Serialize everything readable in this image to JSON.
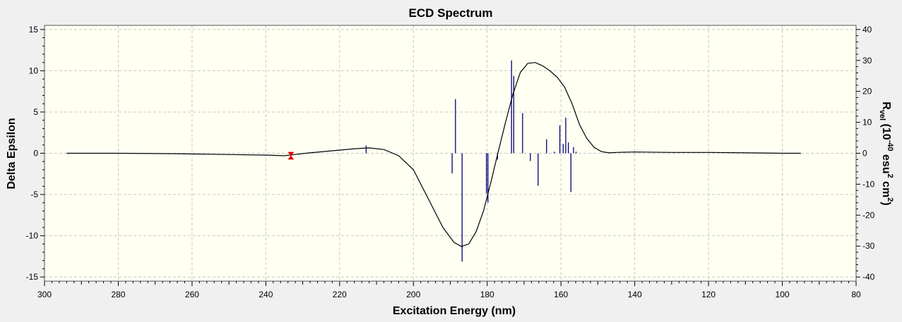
{
  "colors": {
    "plot_background": "#fffff2",
    "window_background": "#f0f0f0",
    "curve": "#000000",
    "sticks": "#00007a",
    "marker": "#e00000",
    "grid": "#c8c8c8"
  },
  "chart_data": {
    "type": "line",
    "title": "ECD Spectrum",
    "xlabel": "Excitation Energy (nm)",
    "ylabel_left": "Delta Epsilon",
    "ylabel_right": {
      "prefix": "R",
      "prefix_sub": "vel",
      "open": " (10",
      "exp1": "-40",
      "mid": " esu",
      "exp2": "2",
      "mid2": " cm",
      "exp3": "2",
      "close": ")"
    },
    "xlim": [
      300,
      80
    ],
    "ylim_left": [
      -15.5,
      15.5
    ],
    "ylim_right": [
      -41.33,
      41.33
    ],
    "grid": true,
    "x_ticks": [
      "300",
      "280",
      "260",
      "240",
      "220",
      "200",
      "180",
      "160",
      "140",
      "120",
      "100",
      "80"
    ],
    "x_tick_values": [
      300,
      280,
      260,
      240,
      220,
      200,
      180,
      160,
      140,
      120,
      100,
      80
    ],
    "y_left_ticks": [
      "15",
      "10",
      "5",
      "0",
      "-5",
      "-10",
      "-15"
    ],
    "y_left_tick_values": [
      15,
      10,
      5,
      0,
      -5,
      -10,
      -15
    ],
    "y_right_ticks": [
      "40",
      "30",
      "20",
      "10",
      "0",
      "-10",
      "-20",
      "-30",
      "-40"
    ],
    "y_right_tick_values": [
      40,
      30,
      20,
      10,
      0,
      -10,
      -20,
      -30,
      -40
    ],
    "series": [
      {
        "axis": "left",
        "style": "curve",
        "x": [
          294,
          280,
          265,
          250,
          240,
          235,
          233,
          228,
          222,
          216,
          212,
          208,
          204,
          200,
          196,
          192,
          189,
          187,
          185,
          183,
          181,
          179,
          177,
          175,
          173,
          171,
          169,
          167,
          165,
          163,
          161,
          159,
          157,
          155,
          153,
          151,
          149,
          147,
          145,
          140,
          130,
          120,
          110,
          100,
          95
        ],
        "y": [
          0,
          0,
          -0.05,
          -0.15,
          -0.22,
          -0.3,
          -0.2,
          0.05,
          0.3,
          0.55,
          0.65,
          0.45,
          -0.3,
          -2,
          -5.5,
          -9,
          -10.8,
          -11.3,
          -11,
          -9.5,
          -7,
          -3.5,
          0.2,
          3.8,
          7.2,
          9.8,
          10.9,
          11,
          10.6,
          10,
          9.2,
          8,
          6,
          3.5,
          1.8,
          0.7,
          0.2,
          0.05,
          0.1,
          0.15,
          0.1,
          0.1,
          0.05,
          0,
          0
        ]
      },
      {
        "axis": "right",
        "style": "sticks",
        "x": [
          212.8,
          189.5,
          188.6,
          186.8,
          180.2,
          179.8,
          177.2,
          173.4,
          172.8,
          170.4,
          168.3,
          166.2,
          163.9,
          161.8,
          160.3,
          159.4,
          158.7,
          158.0,
          157.3,
          156.6,
          155.9
        ],
        "y": [
          2.5,
          -6.5,
          17.5,
          -35,
          -13,
          -16,
          -2,
          30,
          25,
          13,
          -2.5,
          -10.5,
          4.5,
          0.5,
          9,
          3,
          11.5,
          3.5,
          -12.5,
          2,
          0.5
        ]
      }
    ],
    "annotations": [
      {
        "type": "marker",
        "x": 233.2,
        "y": -0.3,
        "axis": "left"
      }
    ]
  }
}
